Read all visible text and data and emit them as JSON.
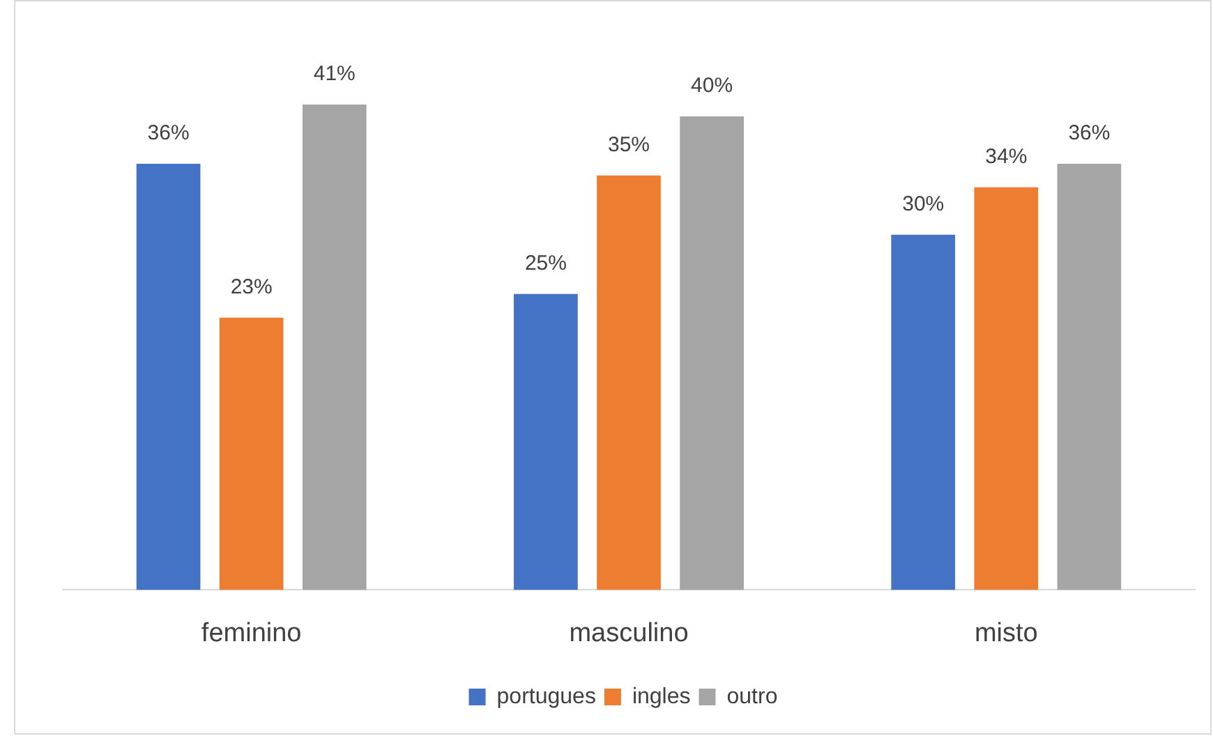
{
  "chart_data": {
    "type": "bar",
    "categories": [
      "feminino",
      "masculino",
      "misto"
    ],
    "series": [
      {
        "name": "portugues",
        "color": "#4472c4",
        "values": [
          36,
          25,
          30
        ],
        "value_labels": [
          "36%",
          "25%",
          "30%"
        ]
      },
      {
        "name": "ingles",
        "color": "#ed7d31",
        "values": [
          23,
          35,
          34
        ],
        "value_labels": [
          "23%",
          "35%",
          "34%"
        ]
      },
      {
        "name": "outro",
        "color": "#a5a5a5",
        "values": [
          41,
          40,
          36
        ],
        "value_labels": [
          "41%",
          "40%",
          "36%"
        ]
      }
    ],
    "legend": "bottom",
    "grid": false
  }
}
